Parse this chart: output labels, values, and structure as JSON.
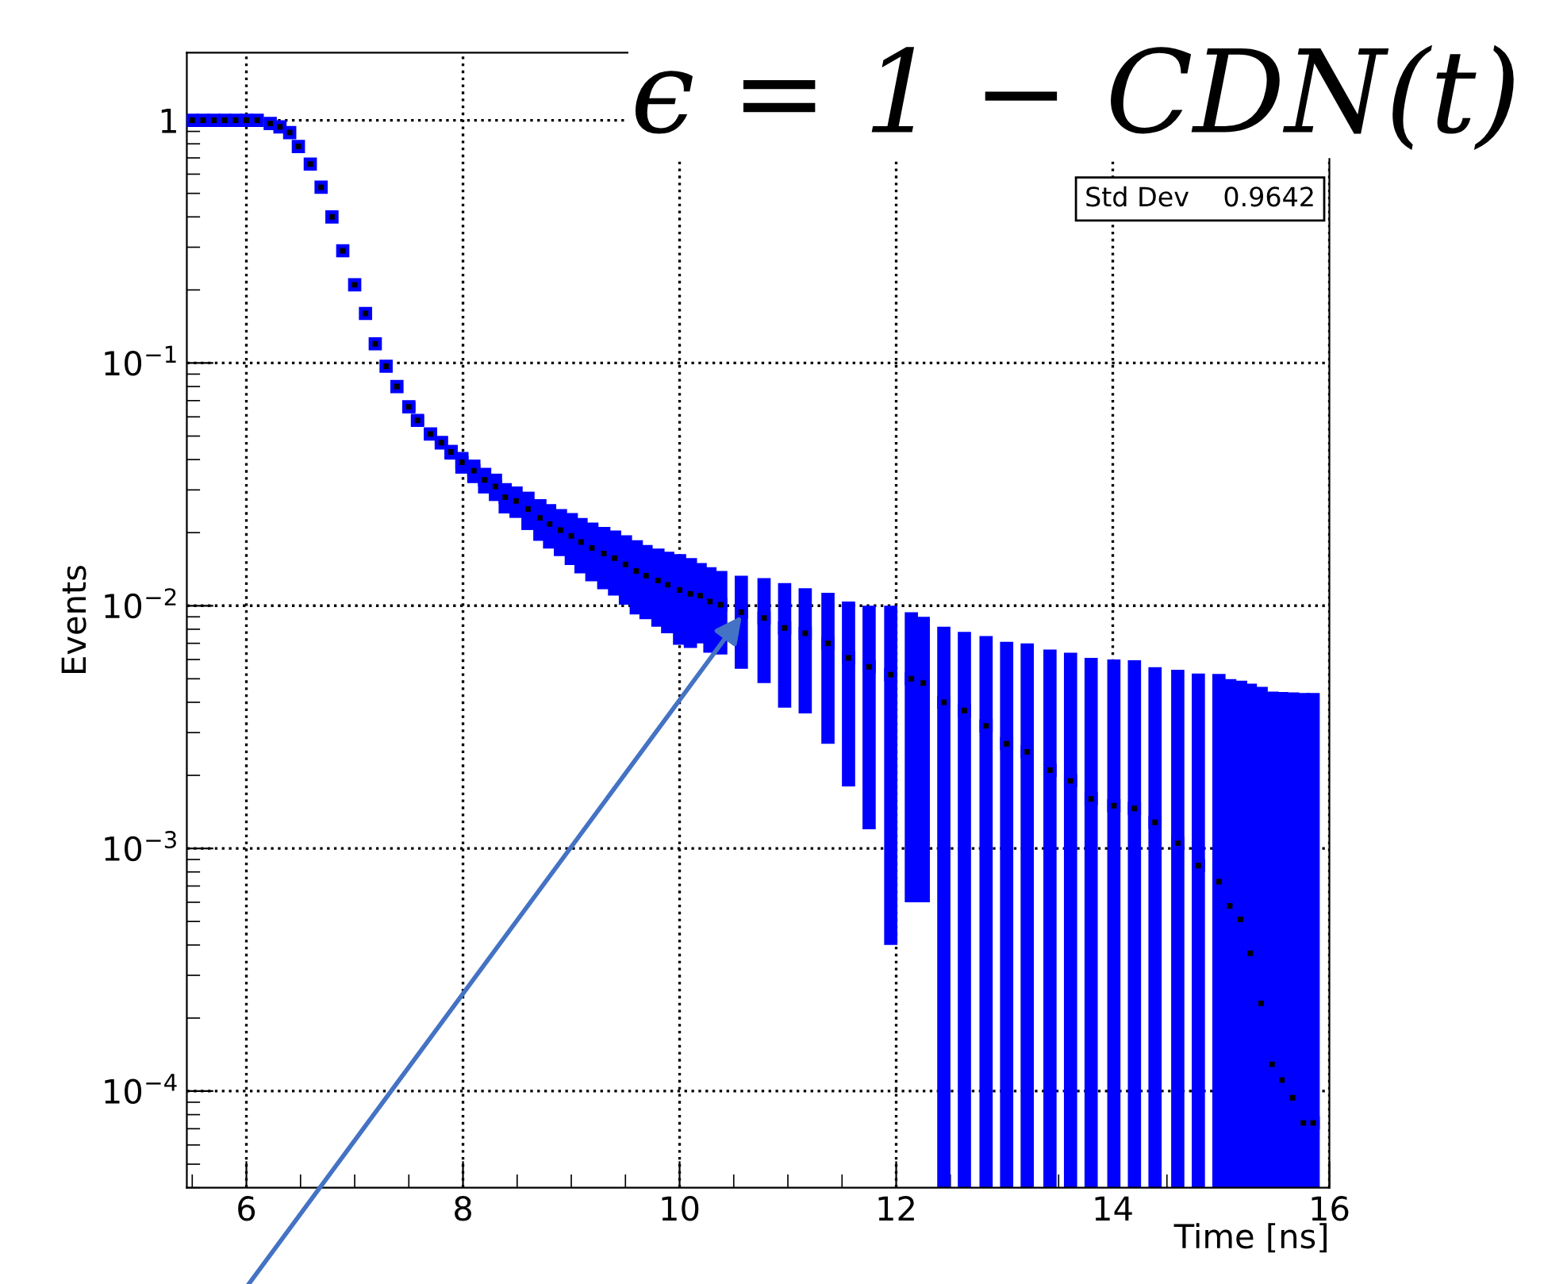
{
  "chart_data": {
    "type": "scatter",
    "xlabel": "Time [ns]",
    "ylabel": "Events",
    "log": "y",
    "grid": true,
    "marker": "square",
    "xlim": [
      5.45,
      16
    ],
    "xticks": [
      6,
      8,
      10,
      12,
      14,
      16
    ],
    "ylim": [
      4e-05,
      1.9
    ],
    "yticks": [
      {
        "value": 0.0001,
        "label": "10$^{−4}$"
      },
      {
        "value": 0.001,
        "label": "10$^{−3}$"
      },
      {
        "value": 0.01,
        "label": "10$^{−2}$"
      },
      {
        "value": 0.1,
        "label": "10$^{−1}$"
      },
      1
    ],
    "annotations": [
      "ϵ = 1 − CDN(t)",
      "Std Dev    0.9642"
    ],
    "series": [
      {
        "color": "#0000ff",
        "x": [
          5.5,
          5.6,
          5.7,
          5.8,
          5.9,
          6.0,
          6.1,
          6.22,
          6.31,
          6.4,
          6.48,
          6.59,
          6.69,
          6.79,
          6.89,
          7.0,
          7.1,
          7.19,
          7.29,
          7.39,
          7.5,
          7.58,
          7.7,
          7.8,
          7.89,
          7.99,
          8.1,
          8.2,
          8.3,
          8.39,
          8.49,
          8.6,
          8.71,
          8.8,
          8.9,
          9.0,
          9.09,
          9.19,
          9.3,
          9.4,
          9.5,
          9.6,
          9.69,
          9.8,
          9.89,
          10.0,
          10.1,
          10.19,
          10.28,
          10.38,
          10.57,
          10.78,
          10.97,
          11.16,
          11.37,
          11.56,
          11.75,
          11.95,
          12.14,
          12.25,
          12.44,
          12.63,
          12.83,
          13.02,
          13.21,
          13.42,
          13.61,
          13.8,
          14.01,
          14.2,
          14.39,
          14.6,
          14.79,
          14.98,
          15.08,
          15.18,
          15.27,
          15.37,
          15.47,
          15.56,
          15.66,
          15.76,
          15.85
        ],
        "values": [
          1,
          1,
          1,
          1,
          1,
          1,
          1,
          0.97,
          0.94,
          0.89,
          0.78,
          0.66,
          0.53,
          0.4,
          0.29,
          0.21,
          0.16,
          0.12,
          0.097,
          0.08,
          0.066,
          0.058,
          0.051,
          0.047,
          0.043,
          0.039,
          0.036,
          0.033,
          0.031,
          0.028,
          0.027,
          0.025,
          0.023,
          0.0217,
          0.0205,
          0.0194,
          0.0183,
          0.0173,
          0.0164,
          0.0157,
          0.0148,
          0.0139,
          0.0133,
          0.0127,
          0.0122,
          0.0116,
          0.0112,
          0.011,
          0.0104,
          0.0101,
          0.0094,
          0.0089,
          0.0081,
          0.0077,
          0.007,
          0.0061,
          0.0056,
          0.0052,
          0.005,
          0.0048,
          0.004,
          0.0037,
          0.0032,
          0.0027,
          0.0025,
          0.0021,
          0.0019,
          0.0016,
          0.0015,
          0.00146,
          0.00128,
          0.00105,
          0.00085,
          0.00073,
          0.00058,
          0.00051,
          0.00037,
          0.00023,
          0.000129,
          0.000111,
          9.4e-05,
          7.4e-05,
          7.4e-05
        ],
        "errors": [
          null,
          null,
          null,
          null,
          null,
          null,
          null,
          null,
          null,
          null,
          null,
          null,
          null,
          null,
          null,
          null,
          null,
          null,
          null,
          null,
          0.003,
          0.003,
          0.003,
          0.003,
          0.003,
          0.004,
          0.004,
          0.004,
          0.004,
          0.004,
          0.004,
          0.0045,
          0.0045,
          0.0045,
          0.0045,
          0.0047,
          0.0047,
          0.0047,
          0.0047,
          0.0047,
          0.0047,
          0.0047,
          0.0045,
          0.0045,
          0.0045,
          0.0047,
          0.0045,
          0.004,
          0.004,
          0.0038,
          0.0039,
          0.0041,
          0.0043,
          0.0041,
          0.0043,
          0.0043,
          0.0044,
          0.0048,
          0.0044,
          0.0042,
          [
            4e-05,
            0.0082
          ],
          [
            4e-05,
            0.0078
          ],
          [
            4e-05,
            0.0075
          ],
          [
            4e-05,
            0.0071
          ],
          [
            4e-05,
            0.007
          ],
          [
            4e-05,
            0.0066
          ],
          [
            4e-05,
            0.0064
          ],
          [
            4e-05,
            0.0061
          ],
          [
            4e-05,
            0.006
          ],
          [
            4e-05,
            0.00596
          ],
          [
            4e-05,
            0.00558
          ],
          [
            4e-05,
            0.00545
          ],
          [
            4e-05,
            0.00525
          ],
          [
            4e-05,
            0.00523
          ],
          [
            4e-05,
            0.00498
          ],
          [
            4e-05,
            0.00491
          ],
          [
            4e-05,
            0.00477
          ],
          [
            4e-05,
            0.00463
          ],
          [
            4e-05,
            0.00443
          ],
          [
            4e-05,
            0.00441
          ],
          [
            4e-05,
            0.00439
          ],
          [
            4e-05,
            0.00437
          ],
          [
            4e-05,
            0.00437
          ]
        ]
      }
    ]
  }
}
